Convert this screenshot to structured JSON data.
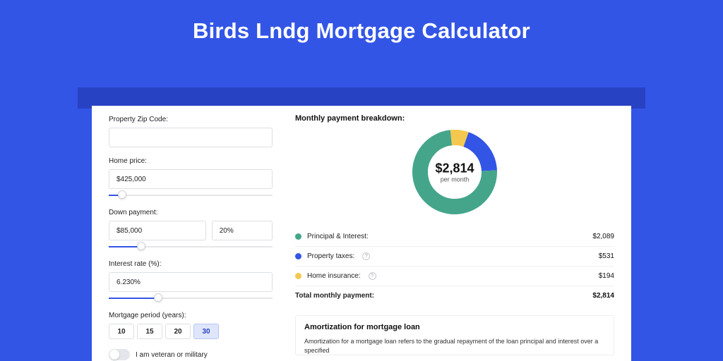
{
  "title": "Birds Lndg Mortgage Calculator",
  "colors": {
    "page_bg": "#3355e6",
    "inner_band": "#2842c4",
    "card_bg": "#ffffff",
    "input_border": "#dcdfe6",
    "track_base": "#e6e6e6",
    "track_fill": "#3355e6",
    "period_active_bg": "#dfe6fb",
    "period_active_border": "#b9c5f2",
    "period_active_text": "#2842c4"
  },
  "form": {
    "zip_label": "Property Zip Code:",
    "zip_value": "",
    "home_price_label": "Home price:",
    "home_price_value": "$425,000",
    "home_price_fill_pct": 8,
    "down_label": "Down payment:",
    "down_value": "$85,000",
    "down_pct_value": "20%",
    "down_fill_pct": 20,
    "rate_label": "Interest rate (%):",
    "rate_value": "6.230%",
    "rate_fill_pct": 30,
    "period_label": "Mortgage period (years):",
    "periods": [
      "10",
      "15",
      "20",
      "30"
    ],
    "period_active_index": 3,
    "veteran_label": "I am veteran or military"
  },
  "breakdown": {
    "title": "Monthly payment breakdown:",
    "center_amount": "$2,814",
    "center_sub": "per month",
    "slices": [
      {
        "key": "pi",
        "label": "Principal & Interest:",
        "value": "$2,089",
        "color": "#44a58a",
        "pct": 74
      },
      {
        "key": "tax",
        "label": "Property taxes:",
        "value": "$531",
        "color": "#3355e6",
        "pct": 19,
        "info": true
      },
      {
        "key": "ins",
        "label": "Home insurance:",
        "value": "$194",
        "color": "#f4c84e",
        "pct": 7,
        "info": true
      }
    ],
    "total_label": "Total monthly payment:",
    "total_value": "$2,814",
    "donut": {
      "size": 120,
      "stroke": 22,
      "bg": "#ffffff"
    }
  },
  "amort": {
    "title": "Amortization for mortgage loan",
    "text": "Amortization for a mortgage loan refers to the gradual repayment of the loan principal and interest over a specified"
  }
}
